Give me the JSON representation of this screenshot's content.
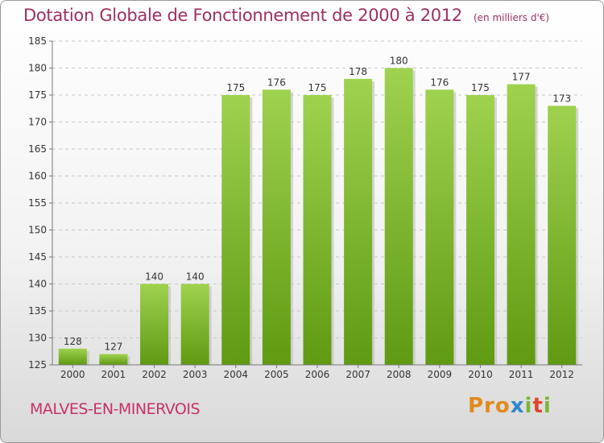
{
  "title": "Dotation Globale de Fonctionnement de 2000 à 2012",
  "unit": "(en milliers d'€)",
  "commune": "MALVES-EN-MINERVOIS",
  "logo": {
    "p1": "Pro",
    "p2": "x",
    "p3": "i",
    "p4": "t",
    "p5": "i"
  },
  "colors": {
    "bar_top": "#9fd24f",
    "bar_bottom": "#5f9a12",
    "title": "#9c2f62"
  },
  "chart_data": {
    "type": "bar",
    "title": "Dotation Globale de Fonctionnement de 2000 à 2012",
    "subtitle": "(en milliers d'€)",
    "categories": [
      "2000",
      "2001",
      "2002",
      "2003",
      "2004",
      "2005",
      "2006",
      "2007",
      "2008",
      "2009",
      "2010",
      "2011",
      "2012"
    ],
    "values": [
      128,
      127,
      140,
      140,
      175,
      176,
      175,
      178,
      180,
      176,
      175,
      177,
      173
    ],
    "ylim": [
      125,
      185
    ],
    "yticks": [
      125,
      130,
      135,
      140,
      145,
      150,
      155,
      160,
      165,
      170,
      175,
      180,
      185
    ],
    "grid": "horizontal dashed",
    "legend": "none"
  }
}
